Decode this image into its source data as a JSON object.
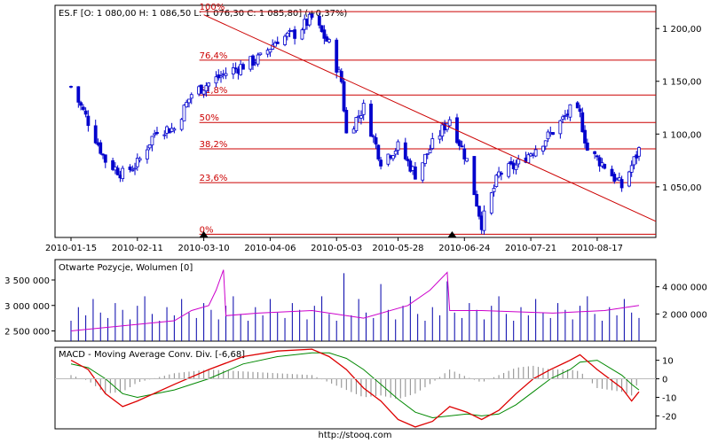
{
  "footer": {
    "source": "http://stooq.com"
  },
  "colors": {
    "candle": "#0000cc",
    "fib": "#cc0000",
    "oi": "#cc00cc",
    "macd": "#dd0000",
    "signal": "#008800",
    "hist": "#888888",
    "volume": "#0000aa"
  },
  "chart_data": [
    {
      "type": "candlestick",
      "title": "ES.F [O: 1 080,00  H: 1 086,50  L: 1 076,30  C: 1 085,80] (+0,37%)",
      "x_ticks": [
        "2010-01-15",
        "2010-02-11",
        "2010-03-10",
        "2010-04-06",
        "2010-05-03",
        "2010-05-28",
        "2010-06-24",
        "2010-07-21",
        "2010-08-17"
      ],
      "y_ticks": [
        1050,
        1100,
        1150,
        1200
      ],
      "y_tick_labels": [
        "1 050,00",
        "1 100,00",
        "1 150,00",
        "1 200,00"
      ],
      "ylim": [
        1002,
        1222
      ],
      "x_range": [
        "2010-01-15",
        "2010-09-03"
      ],
      "close_path": [
        [
          "2010-01-15",
          1145
        ],
        [
          "2010-01-22",
          1112
        ],
        [
          "2010-01-29",
          1075
        ],
        [
          "2010-02-05",
          1062
        ],
        [
          "2010-02-11",
          1072
        ],
        [
          "2010-02-19",
          1105
        ],
        [
          "2010-02-26",
          1105
        ],
        [
          "2010-03-05",
          1138
        ],
        [
          "2010-03-12",
          1148
        ],
        [
          "2010-03-19",
          1158
        ],
        [
          "2010-03-26",
          1165
        ],
        [
          "2010-04-02",
          1172
        ],
        [
          "2010-04-09",
          1190
        ],
        [
          "2010-04-16",
          1195
        ],
        [
          "2010-04-23",
          1210
        ],
        [
          "2010-04-30",
          1185
        ],
        [
          "2010-05-05",
          1150
        ],
        [
          "2010-05-07",
          1100
        ],
        [
          "2010-05-14",
          1125
        ],
        [
          "2010-05-21",
          1075
        ],
        [
          "2010-05-28",
          1088
        ],
        [
          "2010-06-04",
          1062
        ],
        [
          "2010-06-11",
          1090
        ],
        [
          "2010-06-18",
          1115
        ],
        [
          "2010-06-25",
          1075
        ],
        [
          "2010-07-01",
          1015
        ],
        [
          "2010-07-08",
          1062
        ],
        [
          "2010-07-15",
          1070
        ],
        [
          "2010-07-22",
          1085
        ],
        [
          "2010-07-29",
          1100
        ],
        [
          "2010-08-06",
          1122
        ],
        [
          "2010-08-10",
          1118
        ],
        [
          "2010-08-13",
          1085
        ],
        [
          "2010-08-20",
          1070
        ],
        [
          "2010-08-27",
          1050
        ],
        [
          "2010-09-03",
          1085
        ]
      ],
      "fibonacci": {
        "levels": [
          {
            "label": "100%",
            "value": 1216
          },
          {
            "label": "76,4%",
            "value": 1170
          },
          {
            "label": "61,8%",
            "value": 1137
          },
          {
            "label": "50%",
            "value": 1111
          },
          {
            "label": "38,2%",
            "value": 1086
          },
          {
            "label": "23,6%",
            "value": 1054
          },
          {
            "label": "0%",
            "value": 1005
          }
        ],
        "start_date": "2010-03-10",
        "end_date": "2010-09-03"
      },
      "trendline": {
        "from": [
          "2010-03-10",
          1213
        ],
        "to": [
          "2010-09-03",
          1024
        ]
      },
      "markers": [
        "2010-03-10",
        "2010-06-19"
      ]
    },
    {
      "type": "bar",
      "title": "Otwarte Pozycje, Wolumen [0]",
      "left_ticks": [
        "3 500 000",
        "3 000 000",
        "2 500 000"
      ],
      "right_ticks": [
        "4 000 000",
        "2 000 000"
      ],
      "ylim_left": [
        2300000,
        3900000
      ],
      "ylim_right": [
        0,
        6000000
      ],
      "volume_pattern": [
        1500000,
        2500000,
        1900000,
        3100000,
        2100000,
        1700000,
        2800000,
        2300000,
        1600000,
        2600000,
        3300000,
        2000000
      ],
      "volume_spikes": [
        [
          "2010-05-07",
          5000000
        ],
        [
          "2010-05-21",
          4200000
        ],
        [
          "2010-06-18",
          4400000
        ]
      ],
      "open_interest": [
        [
          "2010-01-15",
          2500000
        ],
        [
          "2010-02-05",
          2600000
        ],
        [
          "2010-02-26",
          2700000
        ],
        [
          "2010-03-05",
          2900000
        ],
        [
          "2010-03-12",
          3000000
        ],
        [
          "2010-03-15",
          3300000
        ],
        [
          "2010-03-18",
          3700000
        ],
        [
          "2010-03-19",
          2800000
        ],
        [
          "2010-04-01",
          2850000
        ],
        [
          "2010-04-23",
          2900000
        ],
        [
          "2010-05-14",
          2750000
        ],
        [
          "2010-06-01",
          3000000
        ],
        [
          "2010-06-10",
          3300000
        ],
        [
          "2010-06-17",
          3650000
        ],
        [
          "2010-06-18",
          2900000
        ],
        [
          "2010-07-01",
          2900000
        ],
        [
          "2010-07-30",
          2850000
        ],
        [
          "2010-08-20",
          2900000
        ],
        [
          "2010-09-03",
          3000000
        ]
      ]
    },
    {
      "type": "line",
      "title": "MACD - Moving Average Conv. Div. [-6,68]",
      "y_ticks": [
        10,
        0,
        -10,
        -20
      ],
      "ylim": [
        -27,
        17
      ],
      "macd": [
        [
          "2010-01-15",
          10
        ],
        [
          "2010-01-22",
          5
        ],
        [
          "2010-01-29",
          -8
        ],
        [
          "2010-02-05",
          -15
        ],
        [
          "2010-02-11",
          -12
        ],
        [
          "2010-02-26",
          -3
        ],
        [
          "2010-03-12",
          5
        ],
        [
          "2010-03-26",
          12
        ],
        [
          "2010-04-09",
          15
        ],
        [
          "2010-04-23",
          16
        ],
        [
          "2010-04-30",
          12
        ],
        [
          "2010-05-07",
          5
        ],
        [
          "2010-05-14",
          -5
        ],
        [
          "2010-05-21",
          -12
        ],
        [
          "2010-05-28",
          -22
        ],
        [
          "2010-06-04",
          -26
        ],
        [
          "2010-06-11",
          -23
        ],
        [
          "2010-06-18",
          -15
        ],
        [
          "2010-06-25",
          -18
        ],
        [
          "2010-07-01",
          -22
        ],
        [
          "2010-07-08",
          -17
        ],
        [
          "2010-07-15",
          -8
        ],
        [
          "2010-07-22",
          0
        ],
        [
          "2010-07-29",
          5
        ],
        [
          "2010-08-06",
          10
        ],
        [
          "2010-08-10",
          13
        ],
        [
          "2010-08-17",
          5
        ],
        [
          "2010-08-27",
          -5
        ],
        [
          "2010-08-31",
          -12
        ],
        [
          "2010-09-03",
          -7
        ]
      ],
      "signal": [
        [
          "2010-01-15",
          8
        ],
        [
          "2010-01-22",
          6
        ],
        [
          "2010-01-29",
          0
        ],
        [
          "2010-02-05",
          -8
        ],
        [
          "2010-02-11",
          -10
        ],
        [
          "2010-02-26",
          -6
        ],
        [
          "2010-03-12",
          0
        ],
        [
          "2010-03-26",
          8
        ],
        [
          "2010-04-09",
          12
        ],
        [
          "2010-04-23",
          14
        ],
        [
          "2010-04-30",
          14
        ],
        [
          "2010-05-07",
          11
        ],
        [
          "2010-05-14",
          5
        ],
        [
          "2010-05-21",
          -3
        ],
        [
          "2010-05-28",
          -11
        ],
        [
          "2010-06-04",
          -18
        ],
        [
          "2010-06-11",
          -21
        ],
        [
          "2010-06-18",
          -20
        ],
        [
          "2010-06-25",
          -19
        ],
        [
          "2010-07-01",
          -20
        ],
        [
          "2010-07-08",
          -19
        ],
        [
          "2010-07-15",
          -14
        ],
        [
          "2010-07-22",
          -7
        ],
        [
          "2010-07-29",
          0
        ],
        [
          "2010-08-06",
          5
        ],
        [
          "2010-08-10",
          9
        ],
        [
          "2010-08-17",
          10
        ],
        [
          "2010-08-27",
          2
        ],
        [
          "2010-08-31",
          -3
        ],
        [
          "2010-09-03",
          -6
        ]
      ]
    }
  ]
}
